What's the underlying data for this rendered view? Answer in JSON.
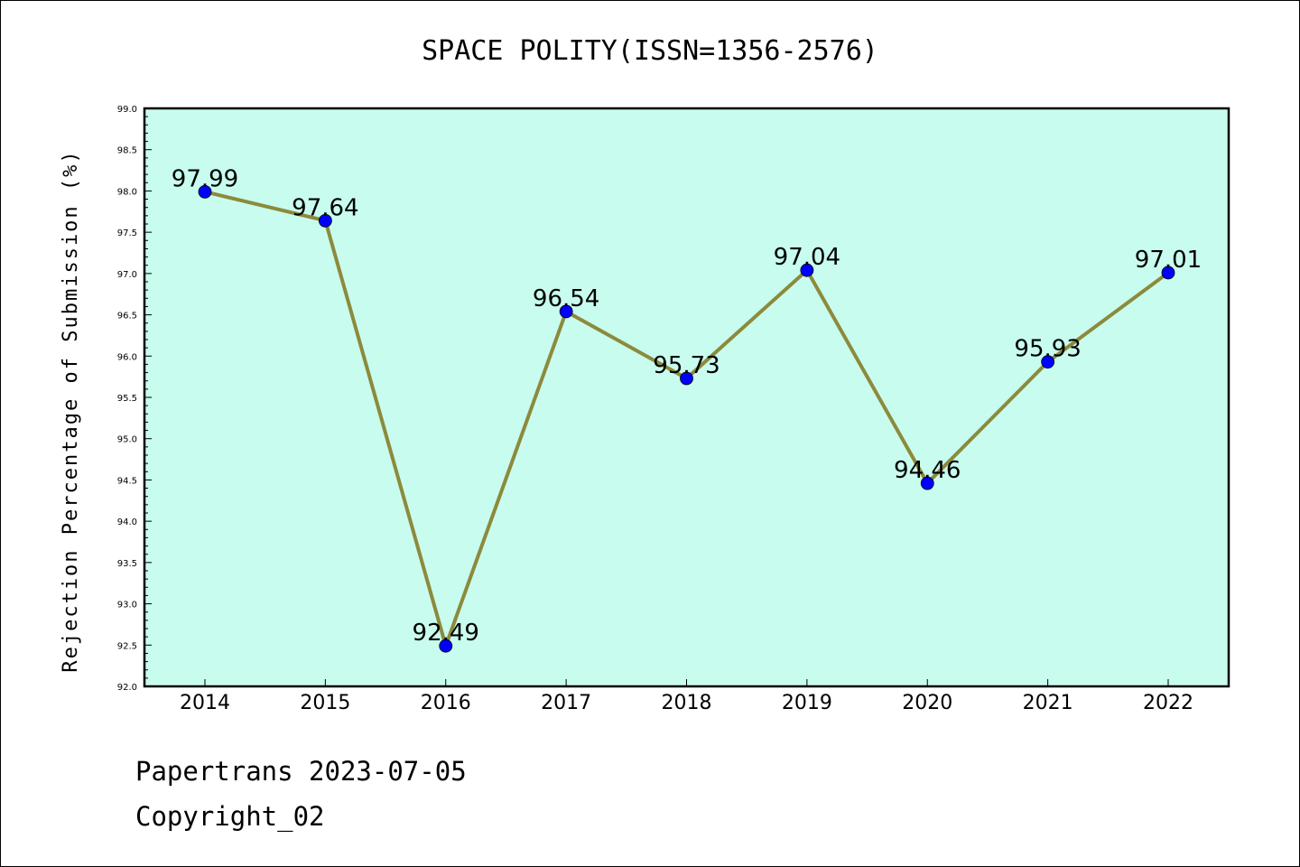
{
  "chart_data": {
    "type": "line",
    "title": "SPACE POLITY(ISSN=1356-2576)",
    "ylabel": "Rejection Percentage of Submission (%)",
    "xlabel": "",
    "categories": [
      "2014",
      "2015",
      "2016",
      "2017",
      "2018",
      "2019",
      "2020",
      "2021",
      "2022"
    ],
    "series": [
      {
        "values": [
          97.99,
          97.64,
          92.49,
          96.54,
          95.73,
          97.04,
          94.46,
          95.93,
          97.01
        ]
      }
    ],
    "data_labels": [
      "97.99",
      "97.64",
      "92.49",
      "96.54",
      "95.73",
      "97.04",
      "94.46",
      "95.93",
      "97.01"
    ],
    "ylim": [
      92.0,
      99.0
    ],
    "y_major_ticks": [
      "92.0",
      "92.5",
      "93.0",
      "93.5",
      "94.0",
      "94.5",
      "95.0",
      "95.5",
      "96.0",
      "96.5",
      "97.0",
      "97.5",
      "98.0",
      "98.5",
      "99.0"
    ],
    "grid": false,
    "legend": "none",
    "colors": {
      "plot_background": "#c8fcee",
      "line": "#8c8a3c",
      "marker": "#0000ff"
    }
  },
  "footer": {
    "line1": "Papertrans 2023-07-05",
    "line2": "Copyright_02"
  }
}
